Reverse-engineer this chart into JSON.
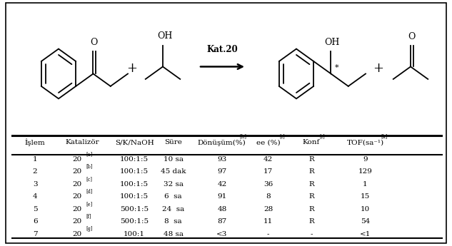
{
  "rows": [
    [
      "1",
      "20",
      "[a]",
      "100:1:5",
      "10 sa",
      "93",
      "42",
      "R",
      "9"
    ],
    [
      "2",
      "20",
      "[b]",
      "100:1:5",
      "45 dak",
      "97",
      "17",
      "R",
      "129"
    ],
    [
      "3",
      "20",
      "[c]",
      "100:1:5",
      "32 sa",
      "42",
      "36",
      "R",
      "1"
    ],
    [
      "4",
      "20",
      "[d]",
      "100:1:5",
      "6  sa",
      "91",
      "8",
      "R",
      "15"
    ],
    [
      "5",
      "20",
      "[e]",
      "500:1:5",
      "24  sa",
      "48",
      "28",
      "R",
      "10"
    ],
    [
      "6",
      "20",
      "[f]",
      "500:1:5",
      "8  sa",
      "87",
      "11",
      "R",
      "54"
    ],
    [
      "7",
      "20",
      "[g]",
      "100:1",
      "48 sa",
      "<3",
      "-",
      "-",
      "<1"
    ]
  ],
  "header_bases": [
    "İşlem",
    "Katalizör",
    "S/K/NaOH",
    "Süre",
    "Dönüşüm(%)",
    "ee (%)",
    "Konf",
    "TOF(sa⁻¹)"
  ],
  "header_sups": [
    "",
    "",
    "",
    "",
    "[h]",
    "[i]",
    "[i]",
    "[k]"
  ],
  "bg_color": "#ffffff",
  "text_color": "#000000",
  "font_size": 7.5,
  "fig_width": 6.33,
  "fig_height": 3.45
}
